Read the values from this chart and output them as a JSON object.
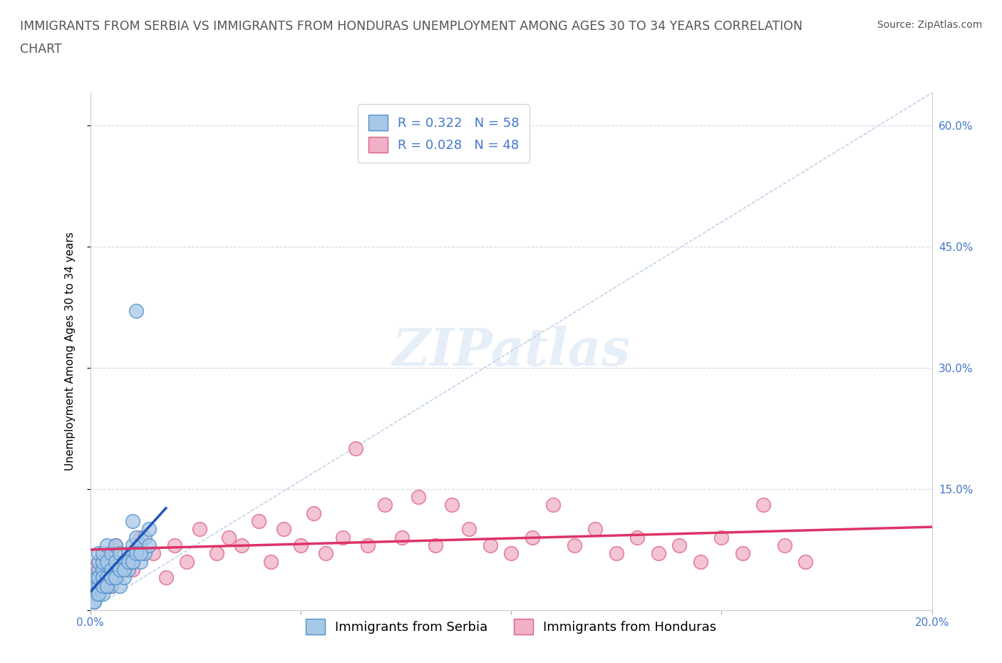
{
  "title_line1": "IMMIGRANTS FROM SERBIA VS IMMIGRANTS FROM HONDURAS UNEMPLOYMENT AMONG AGES 30 TO 34 YEARS CORRELATION",
  "title_line2": "CHART",
  "source_text": "Source: ZipAtlas.com",
  "ylabel": "Unemployment Among Ages 30 to 34 years",
  "xlim": [
    0.0,
    0.2
  ],
  "ylim": [
    0.0,
    0.64
  ],
  "xticks": [
    0.0,
    0.05,
    0.1,
    0.15,
    0.2
  ],
  "xticklabels": [
    "0.0%",
    "",
    "",
    "",
    "20.0%"
  ],
  "yticks": [
    0.0,
    0.15,
    0.3,
    0.45,
    0.6
  ],
  "yticklabels_right": [
    "",
    "15.0%",
    "30.0%",
    "45.0%",
    "60.0%"
  ],
  "serbia_color": "#a8c8e8",
  "serbia_edge_color": "#5090c8",
  "honduras_color": "#f0b0c8",
  "honduras_edge_color": "#e06080",
  "serbia_R": 0.322,
  "serbia_N": 58,
  "honduras_R": 0.028,
  "honduras_N": 48,
  "serbia_x": [
    0.0005,
    0.001,
    0.001,
    0.0015,
    0.0015,
    0.002,
    0.002,
    0.002,
    0.002,
    0.002,
    0.003,
    0.003,
    0.003,
    0.003,
    0.003,
    0.003,
    0.004,
    0.004,
    0.004,
    0.004,
    0.005,
    0.005,
    0.005,
    0.005,
    0.006,
    0.006,
    0.006,
    0.007,
    0.007,
    0.007,
    0.008,
    0.008,
    0.009,
    0.009,
    0.01,
    0.01,
    0.011,
    0.011,
    0.012,
    0.012,
    0.013,
    0.013,
    0.014,
    0.014,
    0.001,
    0.002,
    0.003,
    0.004,
    0.005,
    0.006,
    0.007,
    0.008,
    0.009,
    0.01,
    0.011,
    0.012,
    0.01,
    0.011
  ],
  "serbia_y": [
    0.02,
    0.03,
    0.01,
    0.04,
    0.02,
    0.05,
    0.03,
    0.06,
    0.04,
    0.07,
    0.03,
    0.05,
    0.02,
    0.06,
    0.04,
    0.07,
    0.04,
    0.06,
    0.03,
    0.08,
    0.05,
    0.03,
    0.07,
    0.04,
    0.06,
    0.04,
    0.08,
    0.05,
    0.07,
    0.03,
    0.06,
    0.04,
    0.07,
    0.05,
    0.08,
    0.06,
    0.09,
    0.07,
    0.08,
    0.06,
    0.09,
    0.07,
    0.1,
    0.08,
    0.01,
    0.02,
    0.03,
    0.03,
    0.04,
    0.04,
    0.05,
    0.05,
    0.06,
    0.06,
    0.07,
    0.07,
    0.11,
    0.37
  ],
  "honduras_x": [
    0.001,
    0.002,
    0.003,
    0.004,
    0.005,
    0.006,
    0.008,
    0.01,
    0.012,
    0.015,
    0.018,
    0.02,
    0.023,
    0.026,
    0.03,
    0.033,
    0.036,
    0.04,
    0.043,
    0.046,
    0.05,
    0.053,
    0.056,
    0.06,
    0.063,
    0.066,
    0.07,
    0.074,
    0.078,
    0.082,
    0.086,
    0.09,
    0.095,
    0.1,
    0.105,
    0.11,
    0.115,
    0.12,
    0.125,
    0.13,
    0.135,
    0.14,
    0.145,
    0.15,
    0.155,
    0.16,
    0.165,
    0.17
  ],
  "honduras_y": [
    0.05,
    0.06,
    0.04,
    0.07,
    0.03,
    0.08,
    0.06,
    0.05,
    0.09,
    0.07,
    0.04,
    0.08,
    0.06,
    0.1,
    0.07,
    0.09,
    0.08,
    0.11,
    0.06,
    0.1,
    0.08,
    0.12,
    0.07,
    0.09,
    0.2,
    0.08,
    0.13,
    0.09,
    0.14,
    0.08,
    0.13,
    0.1,
    0.08,
    0.07,
    0.09,
    0.13,
    0.08,
    0.1,
    0.07,
    0.09,
    0.07,
    0.08,
    0.06,
    0.09,
    0.07,
    0.13,
    0.08,
    0.06
  ],
  "grid_color": "#d8d8e8",
  "background_color": "#ffffff",
  "watermark_text": "ZIPatlas",
  "ref_line_color": "#b8cce4",
  "serbia_line_color": "#2255bb",
  "honduras_line_color": "#dd3366",
  "title_color": "#555555",
  "tick_color": "#4477cc",
  "title_fontsize": 12.5,
  "axis_label_fontsize": 11,
  "tick_fontsize": 11,
  "legend_fontsize": 13,
  "source_fontsize": 10
}
